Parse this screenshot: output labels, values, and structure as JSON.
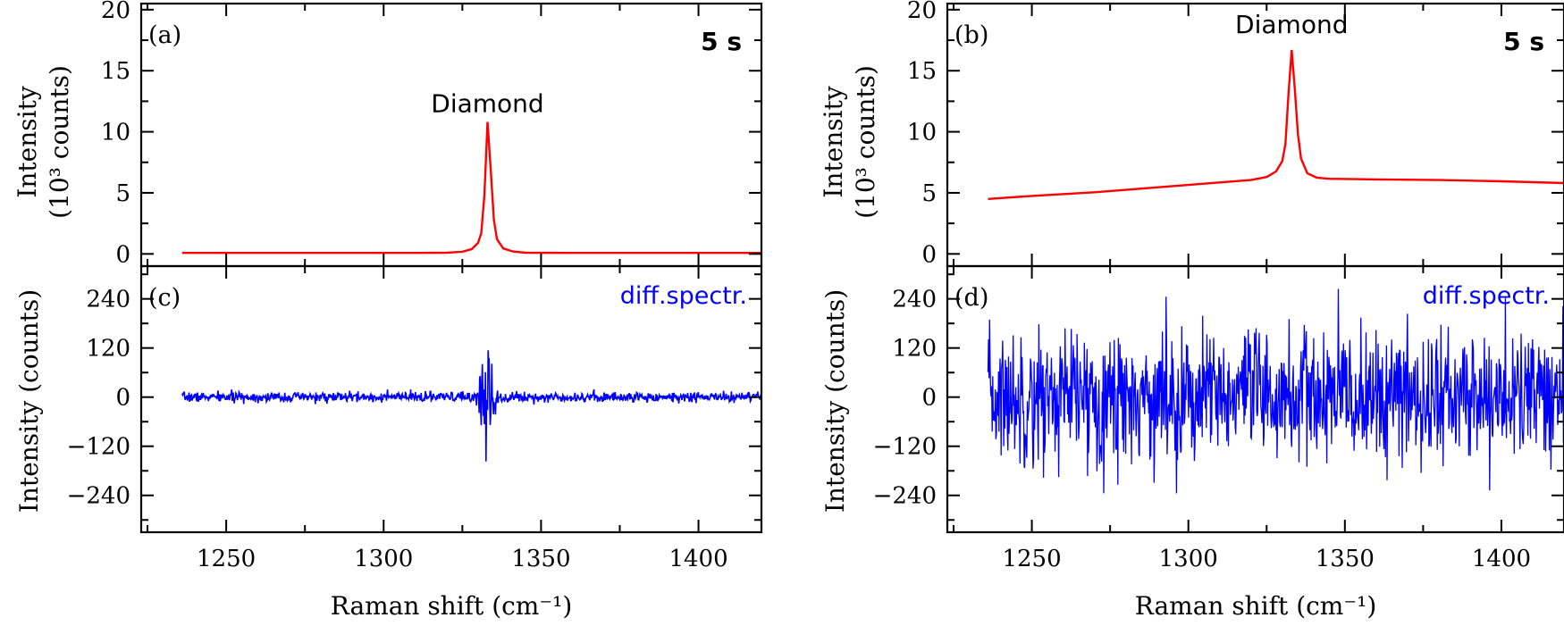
{
  "chart_data": [
    {
      "panel": "(a)",
      "type": "line",
      "ylabel_line1": "Intensity",
      "ylabel_line2": "(10³ counts)",
      "ylim": [
        -1,
        20.5
      ],
      "yticks": [
        0,
        5,
        10,
        15,
        20
      ],
      "xlim": [
        1223,
        1420
      ],
      "grid": false,
      "color": "#ff0000",
      "annotations": [
        {
          "text": "Diamond",
          "x": 1333,
          "y": 11.6,
          "style": "normal"
        },
        {
          "text": "5 s",
          "style": "bold",
          "position": "top-right"
        }
      ],
      "series": [
        {
          "x": [
            1236,
            1260,
            1290,
            1310,
            1320,
            1325,
            1328,
            1330,
            1331,
            1332,
            1333,
            1334,
            1335,
            1336,
            1338,
            1341,
            1345,
            1360,
            1390,
            1420
          ],
          "y": [
            0.08,
            0.08,
            0.08,
            0.08,
            0.1,
            0.18,
            0.4,
            0.9,
            1.7,
            4.8,
            10.8,
            7.0,
            2.8,
            1.2,
            0.45,
            0.2,
            0.1,
            0.08,
            0.08,
            0.08
          ]
        }
      ]
    },
    {
      "panel": "(b)",
      "type": "line",
      "ylabel_line1": "Intensity",
      "ylabel_line2": "(10³ counts)",
      "ylim": [
        -1,
        20.5
      ],
      "yticks": [
        0,
        5,
        10,
        15,
        20
      ],
      "xlim": [
        1223,
        1420
      ],
      "grid": false,
      "color": "#ff0000",
      "annotations": [
        {
          "text": "Diamond",
          "x": 1333,
          "y": 18.1,
          "style": "normal"
        },
        {
          "text": "5 s",
          "style": "bold",
          "position": "top-right"
        }
      ],
      "series": [
        {
          "x": [
            1236,
            1250,
            1270,
            1290,
            1310,
            1320,
            1325,
            1328,
            1330,
            1331,
            1332,
            1333,
            1334,
            1335,
            1336,
            1338,
            1341,
            1345,
            1360,
            1380,
            1400,
            1420
          ],
          "y": [
            4.5,
            4.75,
            5.05,
            5.45,
            5.85,
            6.05,
            6.3,
            6.75,
            7.6,
            9.0,
            13.2,
            16.7,
            13.5,
            9.8,
            7.8,
            6.6,
            6.25,
            6.15,
            6.1,
            6.05,
            5.95,
            5.8
          ]
        }
      ]
    },
    {
      "panel": "(c)",
      "type": "line",
      "ylabel": "Intensity (counts)",
      "xlabel": "Raman shift (cm⁻¹)",
      "ylim": [
        -330,
        320
      ],
      "yticks": [
        -240,
        -120,
        0,
        120,
        240
      ],
      "ytick_labels": [
        "−240",
        "−120",
        "0",
        "120",
        "240"
      ],
      "xlim": [
        1223,
        1420
      ],
      "xticks": [
        1250,
        1300,
        1350,
        1400
      ],
      "grid": false,
      "color": "#0000ff",
      "noise": {
        "baseline": 10,
        "peak_center": 1333,
        "peak_amplitude": 120
      },
      "annotations": [
        {
          "text": "diff.spectr.",
          "style": "blue",
          "position": "top-right"
        }
      ]
    },
    {
      "panel": "(d)",
      "type": "line",
      "ylabel": "Intensity (counts)",
      "xlabel": "Raman shift (cm⁻¹)",
      "ylim": [
        -330,
        320
      ],
      "yticks": [
        -240,
        -120,
        0,
        120,
        240
      ],
      "ytick_labels": [
        "−240",
        "−120",
        "0",
        "120",
        "240"
      ],
      "xlim": [
        1223,
        1420
      ],
      "xticks": [
        1250,
        1300,
        1350,
        1400
      ],
      "grid": false,
      "color": "#0000ff",
      "noise": {
        "baseline": 85,
        "peak_center": 1333,
        "peak_amplitude": 0
      },
      "annotations": [
        {
          "text": "diff.spectr.",
          "style": "blue",
          "position": "top-right"
        }
      ]
    }
  ]
}
